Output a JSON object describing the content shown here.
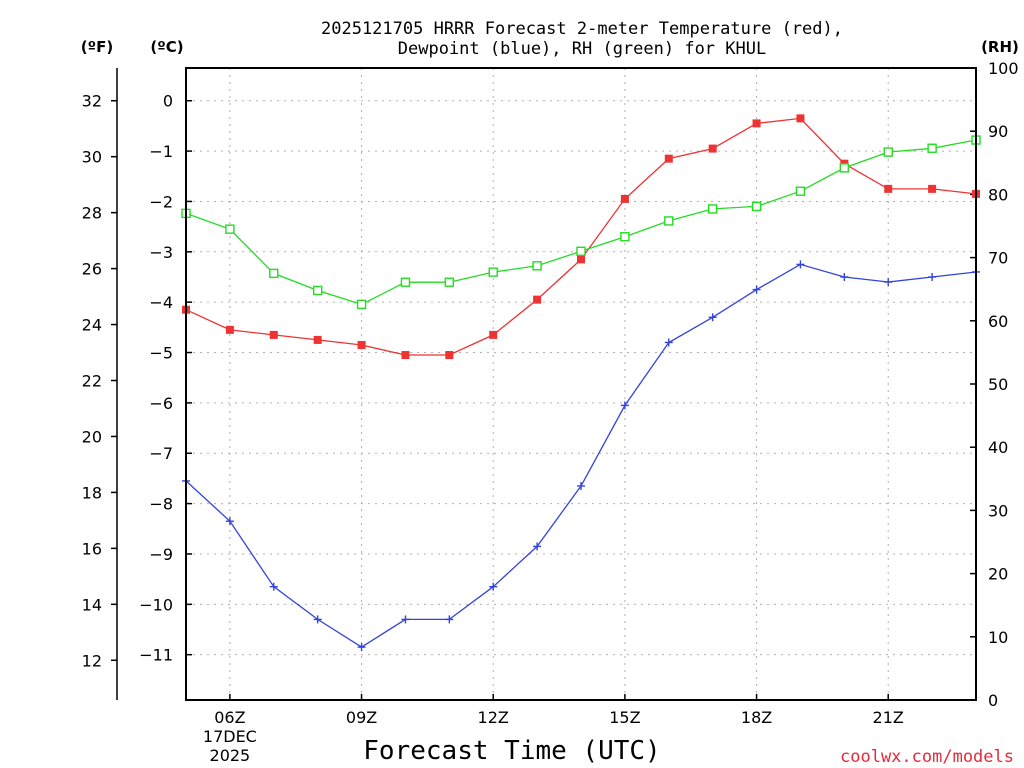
{
  "chart_data": {
    "type": "line",
    "title_line1": "2025121705 HRRR Forecast 2-meter Temperature (red),",
    "title_line2": "Dewpoint (blue), RH (green) for KHUL",
    "xlabel": "Forecast Time (UTC)",
    "credit": "coolwx.com/models",
    "units": {
      "fahrenheit": "(ºF)",
      "celsius": "(ºC)",
      "rh": "(RH)"
    },
    "x": [
      5,
      6,
      7,
      8,
      9,
      10,
      11,
      12,
      13,
      14,
      15,
      16,
      17,
      18,
      19,
      20,
      21,
      22,
      23
    ],
    "xlim": [
      5,
      23
    ],
    "x_ticks": [
      {
        "hour": 6,
        "label": "06Z",
        "sub1": "17DEC",
        "sub2": "2025"
      },
      {
        "hour": 9,
        "label": "09Z"
      },
      {
        "hour": 12,
        "label": "12Z"
      },
      {
        "hour": 15,
        "label": "15Z"
      },
      {
        "hour": 18,
        "label": "18Z"
      },
      {
        "hour": 21,
        "label": "21Z"
      }
    ],
    "celsius_axis": {
      "ylim": [
        -11.9,
        0.65
      ],
      "ticks": [
        "0",
        "−1",
        "−2",
        "−3",
        "−4",
        "−5",
        "−6",
        "−7",
        "−8",
        "−9",
        "−10",
        "−11"
      ],
      "tick_values": [
        0,
        -1,
        -2,
        -3,
        -4,
        -5,
        -6,
        -7,
        -8,
        -9,
        -10,
        -11
      ]
    },
    "fahrenheit_axis": {
      "ticks": [
        "32",
        "30",
        "28",
        "26",
        "24",
        "22",
        "20",
        "18",
        "16",
        "14",
        "12"
      ],
      "tick_values": [
        32,
        30,
        28,
        26,
        24,
        22,
        20,
        18,
        16,
        14,
        12
      ]
    },
    "rh_axis": {
      "ylim": [
        0,
        100
      ],
      "ticks": [
        "100",
        "90",
        "80",
        "70",
        "60",
        "50",
        "40",
        "30",
        "20",
        "10",
        "0"
      ],
      "tick_values": [
        100,
        90,
        80,
        70,
        60,
        50,
        40,
        30,
        20,
        10,
        0
      ]
    },
    "series": [
      {
        "name": "Temperature",
        "axis": "celsius",
        "color": "#ee3333",
        "marker": "filled-square",
        "values": [
          -4.15,
          -4.55,
          -4.65,
          -4.75,
          -4.85,
          -5.05,
          -5.05,
          -4.65,
          -3.95,
          -3.15,
          -1.95,
          -1.15,
          -0.95,
          -0.45,
          -0.35,
          -1.25,
          -1.75,
          -1.75,
          -1.85
        ]
      },
      {
        "name": "Dewpoint",
        "axis": "celsius",
        "color": "#3344dd",
        "marker": "plus",
        "values": [
          -7.55,
          -8.35,
          -9.65,
          -10.3,
          -10.85,
          -10.3,
          -10.3,
          -9.65,
          -8.85,
          -7.65,
          -6.05,
          -4.8,
          -4.3,
          -3.75,
          -3.25,
          -3.5,
          -3.6,
          -3.5,
          -3.4
        ]
      },
      {
        "name": "RH",
        "axis": "rh",
        "color": "#22dd22",
        "marker": "open-square",
        "values": [
          77,
          74.5,
          67.5,
          64.8,
          62.6,
          66.1,
          66.1,
          67.7,
          68.7,
          71,
          73.3,
          75.8,
          77.7,
          78.1,
          80.5,
          84.2,
          86.7,
          87.3,
          88.6
        ]
      }
    ]
  }
}
